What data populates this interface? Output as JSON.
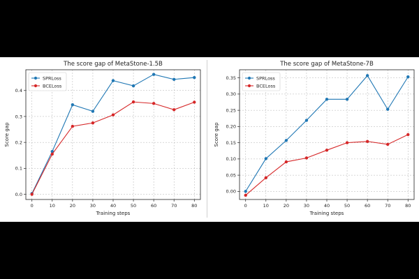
{
  "chart_data": [
    {
      "type": "line",
      "title": "The score gap of MetaStone-1.5B",
      "xlabel": "Training steps",
      "ylabel": "Score gap",
      "x": [
        0,
        10,
        20,
        30,
        40,
        50,
        60,
        70,
        80
      ],
      "xticks": [
        "0",
        "10",
        "20",
        "30",
        "40",
        "50",
        "60",
        "70",
        "80"
      ],
      "yticks": [
        "0.0",
        "0.1",
        "0.2",
        "0.3",
        "0.4"
      ],
      "xlim": [
        -3,
        83
      ],
      "ylim": [
        -0.02,
        0.48
      ],
      "grid": true,
      "legend_position": "upper-left",
      "series": [
        {
          "name": "SPRLoss",
          "color": "#1f77b4",
          "values": [
            0.003,
            0.165,
            0.345,
            0.32,
            0.438,
            0.418,
            0.462,
            0.443,
            0.45
          ]
        },
        {
          "name": "BCELoss",
          "color": "#d62728",
          "values": [
            0.0,
            0.155,
            0.262,
            0.275,
            0.306,
            0.356,
            0.35,
            0.326,
            0.355
          ]
        }
      ]
    },
    {
      "type": "line",
      "title": "The score gap of MetaStone-7B",
      "xlabel": "Training steps",
      "ylabel": "Score gap",
      "x": [
        0,
        10,
        20,
        30,
        40,
        50,
        60,
        70,
        80
      ],
      "xticks": [
        "0",
        "10",
        "20",
        "30",
        "40",
        "50",
        "60",
        "70",
        "80"
      ],
      "yticks": [
        "0.00",
        "0.05",
        "0.10",
        "0.15",
        "0.20",
        "0.25",
        "0.30",
        "0.35"
      ],
      "xlim": [
        -3,
        83
      ],
      "ylim": [
        -0.025,
        0.375
      ],
      "grid": true,
      "legend_position": "upper-left",
      "series": [
        {
          "name": "SPRLoss",
          "color": "#1f77b4",
          "values": [
            0.0,
            0.101,
            0.157,
            0.219,
            0.284,
            0.284,
            0.357,
            0.253,
            0.353
          ]
        },
        {
          "name": "BCELoss",
          "color": "#d62728",
          "values": [
            -0.012,
            0.042,
            0.091,
            0.103,
            0.127,
            0.15,
            0.154,
            0.145,
            0.175
          ]
        }
      ]
    }
  ]
}
